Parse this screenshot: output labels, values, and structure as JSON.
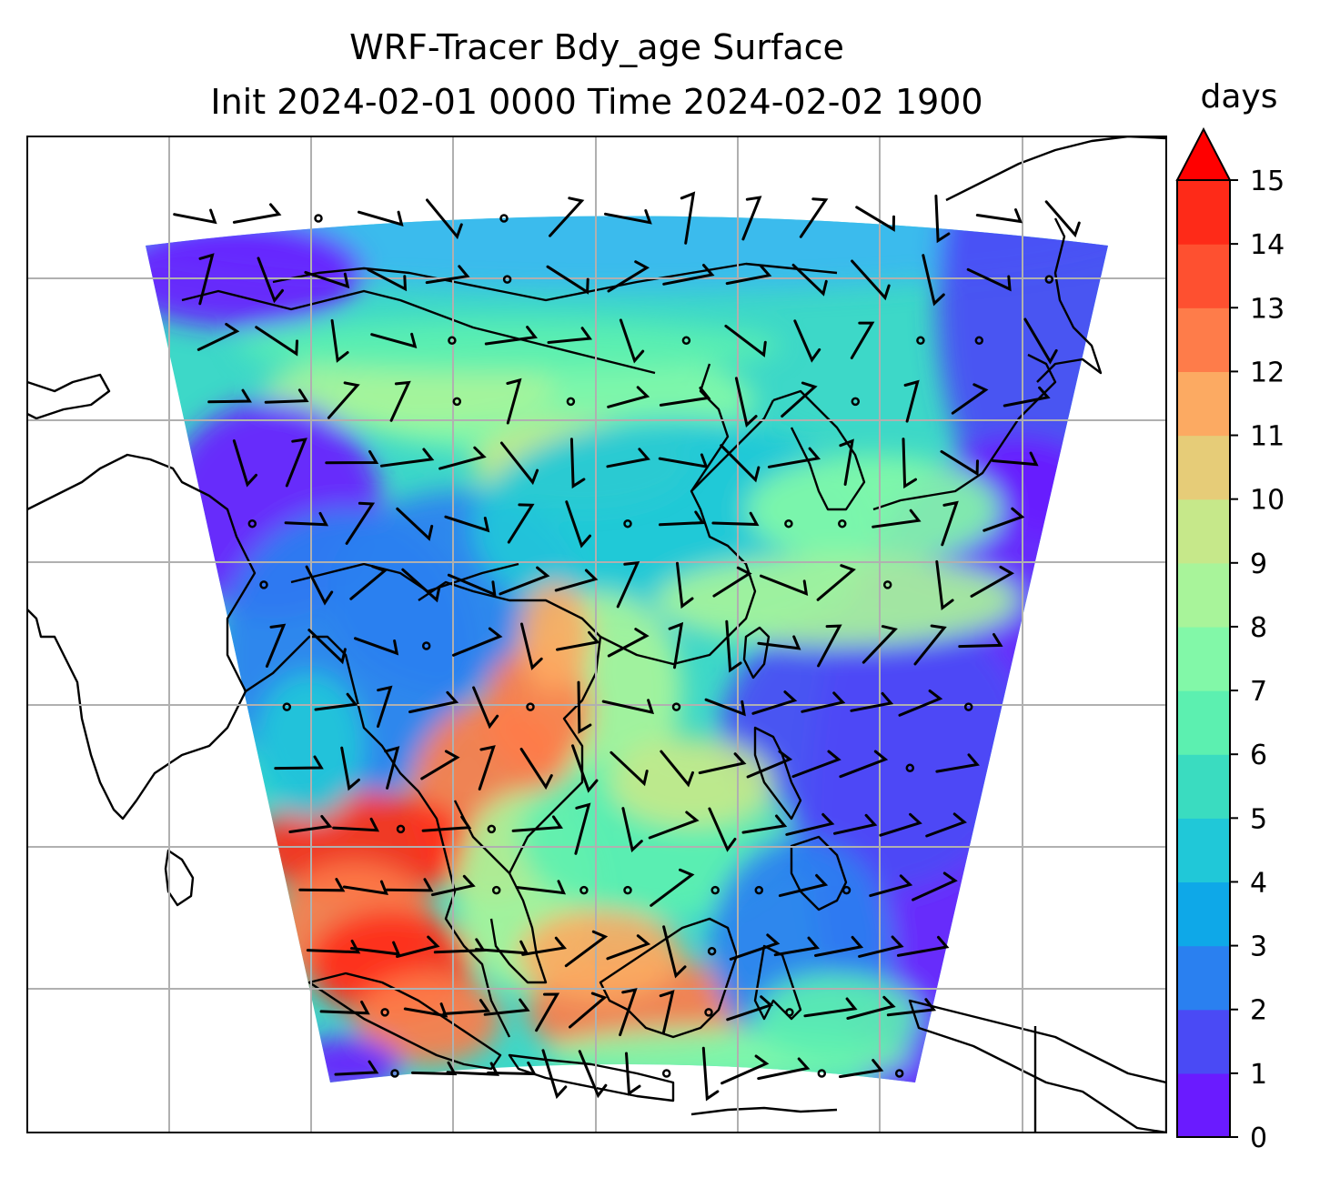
{
  "title": {
    "line1": "WRF-Tracer Bdy_age Surface",
    "line2": "Init 2024-02-01 0000 Time 2024-02-02 1900"
  },
  "colorbar": {
    "units": "days",
    "ticks": [
      "0",
      "1",
      "2",
      "3",
      "4",
      "5",
      "6",
      "7",
      "8",
      "9",
      "10",
      "11",
      "12",
      "13",
      "14",
      "15"
    ],
    "colors": [
      "#6a1bff",
      "#4a4af5",
      "#2a80f0",
      "#0ea8e8",
      "#20c8d8",
      "#3adcc0",
      "#5cf0b0",
      "#82f8a8",
      "#a8f49a",
      "#c6e88a",
      "#e6cc78",
      "#fcaa62",
      "#fe7c4a",
      "#fe5030",
      "#fe2a18"
    ],
    "extend_color": "#ff0000",
    "extend": "max"
  },
  "map": {
    "field": "Bdy_age",
    "level": "Surface",
    "overlays": [
      "coastlines",
      "gridlines",
      "wind-barbs"
    ]
  }
}
